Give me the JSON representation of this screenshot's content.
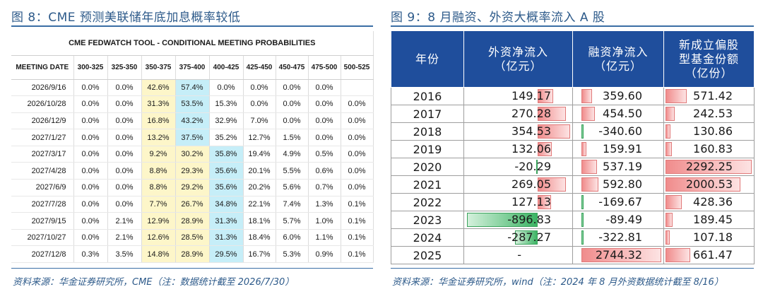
{
  "left": {
    "title": "图 8：CME 预测美联储年底加息概率较低",
    "tool_title": "CME FEDWATCH TOOL - CONDITIONAL MEETING PROBABILITIES",
    "headers": [
      "MEETING DATE",
      "300-325",
      "325-350",
      "350-375",
      "375-400",
      "400-425",
      "425-450",
      "450-475",
      "475-500",
      "500-525"
    ],
    "rows": [
      [
        "2026/9/16",
        "0.0%",
        "0.0%",
        "42.6%",
        "57.4%",
        "0.0%",
        "0.0%",
        "0.0%",
        "0.0%",
        ""
      ],
      [
        "2026/10/28",
        "0.0%",
        "0.0%",
        "31.3%",
        "53.5%",
        "15.3%",
        "0.0%",
        "0.0%",
        "0.0%",
        "0.0%"
      ],
      [
        "2026/12/9",
        "0.0%",
        "0.0%",
        "16.8%",
        "43.2%",
        "32.9%",
        "7.0%",
        "0.0%",
        "0.0%",
        "0.0%"
      ],
      [
        "2027/1/27",
        "0.0%",
        "0.0%",
        "13.2%",
        "37.5%",
        "35.2%",
        "12.7%",
        "1.5%",
        "0.0%",
        "0.0%"
      ],
      [
        "2027/3/17",
        "0.0%",
        "0.0%",
        "9.2%",
        "30.2%",
        "35.8%",
        "19.4%",
        "4.9%",
        "0.5%",
        "0.0%"
      ],
      [
        "2027/4/28",
        "0.0%",
        "0.0%",
        "8.8%",
        "29.3%",
        "35.6%",
        "20.1%",
        "5.5%",
        "0.6%",
        "0.0%"
      ],
      [
        "2027/6/9",
        "0.0%",
        "0.0%",
        "8.8%",
        "29.2%",
        "35.6%",
        "20.2%",
        "5.6%",
        "0.7%",
        "0.0%"
      ],
      [
        "2027/7/28",
        "0.0%",
        "0.0%",
        "7.7%",
        "26.7%",
        "34.8%",
        "22.1%",
        "7.4%",
        "1.3%",
        "0.1%"
      ],
      [
        "2027/9/15",
        "0.0%",
        "2.1%",
        "12.9%",
        "28.9%",
        "31.3%",
        "18.1%",
        "5.7%",
        "1.0%",
        "0.1%"
      ],
      [
        "2027/10/27",
        "0.0%",
        "2.1%",
        "12.6%",
        "28.5%",
        "31.3%",
        "18.4%",
        "6.0%",
        "1.1%",
        "0.1%"
      ],
      [
        "2027/12/8",
        "0.3%",
        "3.5%",
        "14.8%",
        "28.9%",
        "29.5%",
        "16.7%",
        "5.3%",
        "0.9%",
        "0.1%"
      ]
    ],
    "highlight": [
      [
        "",
        "",
        "",
        "y",
        "c",
        "",
        "",
        "",
        "",
        ""
      ],
      [
        "",
        "",
        "",
        "y",
        "c",
        "",
        "",
        "",
        "",
        ""
      ],
      [
        "",
        "",
        "",
        "y",
        "c",
        "",
        "",
        "",
        "",
        ""
      ],
      [
        "",
        "",
        "",
        "y",
        "c",
        "",
        "",
        "",
        "",
        ""
      ],
      [
        "",
        "",
        "",
        "y",
        "y",
        "c",
        "",
        "",
        "",
        ""
      ],
      [
        "",
        "",
        "",
        "y",
        "y",
        "c",
        "",
        "",
        "",
        ""
      ],
      [
        "",
        "",
        "",
        "y",
        "y",
        "c",
        "",
        "",
        "",
        ""
      ],
      [
        "",
        "",
        "",
        "y",
        "y",
        "c",
        "",
        "",
        "",
        ""
      ],
      [
        "",
        "",
        "",
        "y",
        "y",
        "c",
        "",
        "",
        "",
        ""
      ],
      [
        "",
        "",
        "",
        "y",
        "y",
        "c",
        "",
        "",
        "",
        ""
      ],
      [
        "",
        "",
        "",
        "y",
        "y",
        "c",
        "",
        "",
        "",
        ""
      ]
    ],
    "source": "资料来源：华金证券研究所，CME（注：数据统计截至 2026/7/30）"
  },
  "right": {
    "title": "图 9：8 月融资、外资大概率流入 A 股",
    "headers": [
      "年份",
      "外资净流入\n（亿元）",
      "融资净流入\n（亿元）",
      "新成立偏股\n型基金份额\n（亿份）"
    ],
    "rows": [
      {
        "year": "2016",
        "foreign": "149.17",
        "margin": "359.60",
        "fund": "571.42"
      },
      {
        "year": "2017",
        "foreign": "270.28",
        "margin": "454.50",
        "fund": "242.53"
      },
      {
        "year": "2018",
        "foreign": "354.53",
        "margin": "-340.60",
        "fund": "130.86"
      },
      {
        "year": "2019",
        "foreign": "132.06",
        "margin": "159.91",
        "fund": "160.83"
      },
      {
        "year": "2020",
        "foreign": "-20.29",
        "margin": "537.19",
        "fund": "2292.25"
      },
      {
        "year": "2021",
        "foreign": "269.05",
        "margin": "592.80",
        "fund": "2000.53"
      },
      {
        "year": "2022",
        "foreign": "127.13",
        "margin": "-169.67",
        "fund": "428.36"
      },
      {
        "year": "2023",
        "foreign": "-896.83",
        "margin": "-89.49",
        "fund": "189.45"
      },
      {
        "year": "2024",
        "foreign": "-287.27",
        "margin": "-322.81",
        "fund": "107.18"
      },
      {
        "year": "2025",
        "foreign": "-",
        "margin": "2744.32",
        "fund": "661.47"
      }
    ],
    "colors": {
      "positive": "#f08c8c",
      "negative": "#3cb464",
      "header": "#1f4e9c"
    },
    "source": "资料来源：华金证券研究所，wind（注：2024 年 8 月外资数据统计截至 8/16）"
  }
}
